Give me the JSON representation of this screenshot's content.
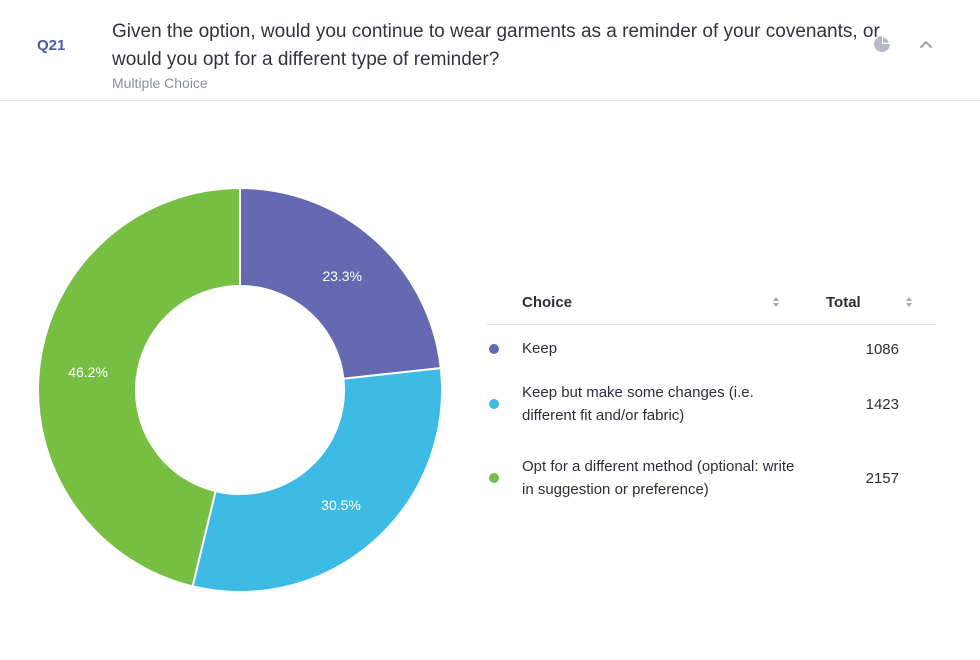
{
  "question": {
    "number": "Q21",
    "title": "Given the option, would you continue to wear garments as a reminder of your covenants, or would you opt for a different type of reminder?",
    "type": "Multiple Choice"
  },
  "header_icons": {
    "chart": "pie-chart-icon",
    "collapse": "chevron-up-icon"
  },
  "table": {
    "col_choice": "Choice",
    "col_total": "Total"
  },
  "chart_data": {
    "type": "pie",
    "donut": true,
    "categories": [
      "Keep",
      "Keep but make some changes (i.e. different fit and/or fabric)",
      "Opt for a different method (optional: write in suggestion or preference)"
    ],
    "values": [
      1086,
      1423,
      2157
    ],
    "percent_labels": [
      "23.3%",
      "30.5%",
      "46.2%"
    ],
    "colors": [
      "#6569b2",
      "#3dbbe4",
      "#77bf43"
    ],
    "legend": "right"
  }
}
